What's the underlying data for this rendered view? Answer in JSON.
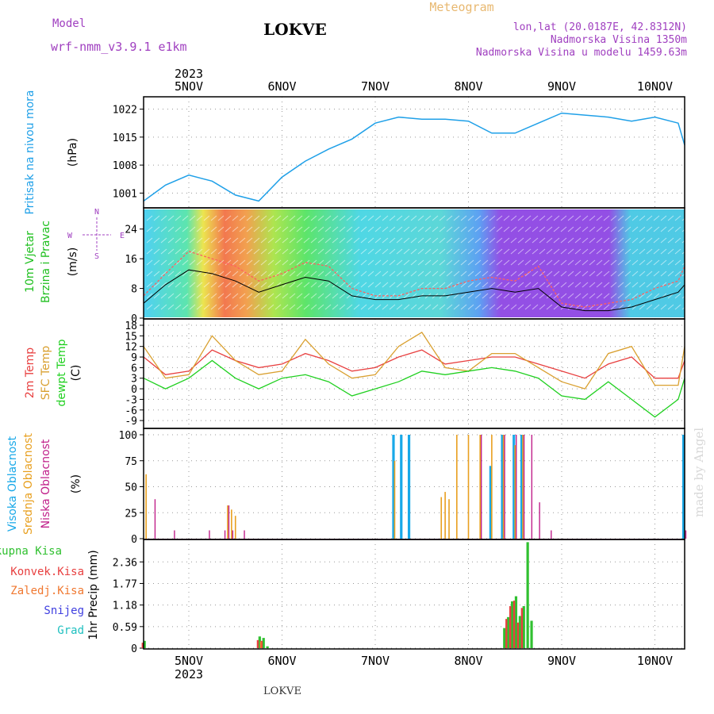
{
  "header": {
    "model_label": "Model",
    "model_name": "wrf-nmm_v3.9.1  e1km",
    "station": "LOKVE",
    "meteogram": "Meteogram",
    "lonlat": "lon,lat (20.0187E, 42.8312N)",
    "elevation": "Nadmorska Visina 1350m",
    "model_elevation": "Nadmorska Visina u modelu 1459.63m",
    "footer_station": "LOKVE",
    "watermark": "made by Angel"
  },
  "colors": {
    "pressure": "#1fa0e8",
    "temp2m": "#e84040",
    "sfc": "#d9a030",
    "dewpt": "#20d020",
    "cloud_high": "#18a8e8",
    "cloud_mid": "#e8a020",
    "cloud_low": "#c0208a",
    "precip_total": "#30c030",
    "precip_conv": "#e84040",
    "precip_frozen": "#f07830",
    "snow": "#4040e0",
    "hail": "#20c0c0",
    "wind_label": "#20c020",
    "wind_speed_label": "#20c020"
  },
  "chart_data": [
    {
      "type": "line",
      "panel": "pressure",
      "title": "",
      "ylabel": [
        "Pritisak na nivou mora",
        "(hPa)"
      ],
      "ylim": [
        997.5,
        1023.5
      ],
      "yticks": [
        1001,
        1008,
        1015,
        1022
      ],
      "x_days_top": [
        "5NOV",
        "6NOV",
        "7NOV",
        "8NOV",
        "9NOV",
        "10NOV"
      ],
      "year_top": "2023",
      "x": [
        "2023-11-04 12:00",
        "2023-11-04 18:00",
        "2023-11-05 00:00",
        "2023-11-05 06:00",
        "2023-11-05 12:00",
        "2023-11-05 18:00",
        "2023-11-06 00:00",
        "2023-11-06 06:00",
        "2023-11-06 12:00",
        "2023-11-06 18:00",
        "2023-11-07 00:00",
        "2023-11-07 06:00",
        "2023-11-07 12:00",
        "2023-11-07 18:00",
        "2023-11-08 00:00",
        "2023-11-08 06:00",
        "2023-11-08 12:00",
        "2023-11-08 18:00",
        "2023-11-09 00:00",
        "2023-11-09 06:00",
        "2023-11-09 12:00",
        "2023-11-09 18:00",
        "2023-11-10 00:00",
        "2023-11-10 06:00",
        "2023-11-10 12:00"
      ],
      "series": [
        {
          "values": [
            999,
            1003,
            1005.5,
            1004,
            1000.5,
            999,
            1005,
            1009,
            1012,
            1014.5,
            1018.5,
            1020,
            1019.5,
            1019.5,
            1019,
            1016,
            1016,
            1018.5,
            1021,
            1020.5,
            1020,
            1019,
            1020,
            1018.5,
            1013
          ]
        }
      ],
      "grid": true
    },
    {
      "type": "line",
      "panel": "wind",
      "title": "",
      "ylabel": [
        "10m Vjetar",
        "Brzina i Pravac",
        "(m/s)"
      ],
      "compass": [
        "N",
        "E",
        "W",
        "S"
      ],
      "ylim": [
        0,
        28
      ],
      "yticks": [
        0,
        8,
        16,
        24
      ],
      "x": [
        "2023-11-04 12:00",
        "2023-11-04 18:00",
        "2023-11-05 00:00",
        "2023-11-05 06:00",
        "2023-11-05 12:00",
        "2023-11-05 18:00",
        "2023-11-06 00:00",
        "2023-11-06 06:00",
        "2023-11-06 12:00",
        "2023-11-06 18:00",
        "2023-11-07 00:00",
        "2023-11-07 06:00",
        "2023-11-07 12:00",
        "2023-11-07 18:00",
        "2023-11-08 00:00",
        "2023-11-08 06:00",
        "2023-11-08 12:00",
        "2023-11-08 18:00",
        "2023-11-09 00:00",
        "2023-11-09 06:00",
        "2023-11-09 12:00",
        "2023-11-09 18:00",
        "2023-11-10 00:00",
        "2023-11-10 06:00",
        "2023-11-10 12:00"
      ],
      "series": [
        {
          "values": [
            6,
            12,
            18,
            16,
            14,
            10,
            12,
            15,
            14,
            8,
            6,
            6,
            8,
            8,
            10,
            11,
            10,
            14,
            4,
            3,
            4,
            5,
            8,
            10,
            14
          ]
        },
        {
          "values": [
            4,
            9,
            13,
            12,
            10,
            7,
            9,
            11,
            10,
            6,
            5,
            5,
            6,
            6,
            7,
            8,
            7,
            8,
            3,
            2,
            2,
            3,
            5,
            7,
            9
          ]
        }
      ],
      "grid": true
    },
    {
      "type": "line",
      "panel": "temperature",
      "title": "",
      "ylabel": [
        "2m Temp",
        "SFC Temp",
        "dewpt Temp",
        "(C)"
      ],
      "ylim": [
        -11,
        18
      ],
      "yticks": [
        -9,
        -6,
        -3,
        0,
        3,
        6,
        9,
        12,
        15,
        18
      ],
      "x": [
        "2023-11-04 12:00",
        "2023-11-04 18:00",
        "2023-11-05 00:00",
        "2023-11-05 06:00",
        "2023-11-05 12:00",
        "2023-11-05 18:00",
        "2023-11-06 00:00",
        "2023-11-06 06:00",
        "2023-11-06 12:00",
        "2023-11-06 18:00",
        "2023-11-07 00:00",
        "2023-11-07 06:00",
        "2023-11-07 12:00",
        "2023-11-07 18:00",
        "2023-11-08 00:00",
        "2023-11-08 06:00",
        "2023-11-08 12:00",
        "2023-11-08 18:00",
        "2023-11-09 00:00",
        "2023-11-09 06:00",
        "2023-11-09 12:00",
        "2023-11-09 18:00",
        "2023-11-10 00:00",
        "2023-11-10 06:00",
        "2023-11-10 12:00"
      ],
      "series": [
        {
          "values": [
            9,
            4,
            5,
            11,
            8,
            6,
            7,
            10,
            8,
            5,
            6,
            9,
            11,
            7,
            8,
            9,
            9,
            7,
            5,
            3,
            7,
            9,
            3,
            3,
            8
          ]
        },
        {
          "values": [
            12,
            3,
            4,
            15,
            8,
            4,
            5,
            14,
            7,
            3,
            4,
            12,
            16,
            6,
            5,
            10,
            10,
            6,
            2,
            0,
            10,
            12,
            1,
            1,
            12
          ]
        },
        {
          "values": [
            3,
            0,
            3,
            8,
            3,
            0,
            3,
            4,
            2,
            -2,
            0,
            2,
            5,
            4,
            5,
            6,
            5,
            3,
            -2,
            -3,
            2,
            -3,
            -8,
            -3,
            3
          ]
        }
      ],
      "grid": true
    },
    {
      "type": "bar",
      "panel": "clouds",
      "title": "",
      "ylabel": [
        "Visoka Oblacnost",
        "Srednja Oblacnost",
        "Niska Oblacnost",
        "(%)"
      ],
      "ylim": [
        0,
        100
      ],
      "yticks": [
        0,
        25,
        50,
        75,
        100
      ],
      "x": [
        "2023-11-04 13:00",
        "2023-11-04 15:00",
        "2023-11-04 20:00",
        "2023-11-05 05:00",
        "2023-11-05 09:00",
        "2023-11-05 10:00",
        "2023-11-05 11:00",
        "2023-11-05 12:00",
        "2023-11-05 14:00",
        "2023-11-07 05:00",
        "2023-11-07 07:00",
        "2023-11-07 09:00",
        "2023-11-07 17:00",
        "2023-11-07 18:00",
        "2023-11-07 19:00",
        "2023-11-07 21:00",
        "2023-11-08 00:00",
        "2023-11-08 03:00",
        "2023-11-08 06:00",
        "2023-11-08 09:00",
        "2023-11-08 12:00",
        "2023-11-08 14:00",
        "2023-11-08 16:00",
        "2023-11-08 18:00",
        "2023-11-08 21:00",
        "2023-11-10 12:00"
      ],
      "series": [
        {
          "name": "Visoka Oblacnost",
          "values": [
            0,
            0,
            0,
            0,
            0,
            0,
            0,
            0,
            0,
            100,
            100,
            100,
            0,
            0,
            0,
            0,
            0,
            0,
            70,
            100,
            100,
            100,
            0,
            0,
            0,
            100
          ]
        },
        {
          "name": "Srednja Oblacnost",
          "values": [
            62,
            0,
            0,
            0,
            0,
            32,
            28,
            22,
            0,
            75,
            0,
            0,
            40,
            45,
            38,
            100,
            100,
            100,
            100,
            100,
            90,
            100,
            0,
            0,
            0,
            0
          ]
        },
        {
          "name": "Niska Oblacnost",
          "values": [
            0,
            38,
            8,
            8,
            8,
            32,
            8,
            0,
            8,
            0,
            0,
            0,
            0,
            0,
            0,
            0,
            0,
            100,
            0,
            100,
            100,
            100,
            100,
            35,
            8,
            8
          ]
        }
      ],
      "grid": true
    },
    {
      "type": "bar",
      "panel": "precip",
      "title": "",
      "ylabel": [
        "1hr Precip (mm)"
      ],
      "legend": [
        "Ukupna Kisa",
        "Konvek.Kisa",
        "Zaledj.Kisa",
        "Snijeg",
        "Grad"
      ],
      "ylim": [
        0,
        2.8
      ],
      "yticks": [
        0,
        0.59,
        1.18,
        1.77,
        2.36
      ],
      "x_days_bottom": [
        "5NOV",
        "6NOV",
        "7NOV",
        "8NOV",
        "9NOV",
        "10NOV"
      ],
      "year_bottom": "2023",
      "x": [
        "2023-11-04 12:00",
        "2023-11-05 18:00",
        "2023-11-05 19:00",
        "2023-11-05 20:00",
        "2023-11-08 09:00",
        "2023-11-08 10:00",
        "2023-11-08 11:00",
        "2023-11-08 12:00",
        "2023-11-08 13:00",
        "2023-11-08 14:00",
        "2023-11-08 15:00",
        "2023-11-08 16:00"
      ],
      "series": [
        {
          "name": "Ukupna Kisa",
          "values": [
            0.2,
            0.32,
            0.28,
            0.05,
            0.55,
            0.85,
            1.28,
            1.42,
            0.88,
            1.15,
            2.9,
            0.75
          ]
        },
        {
          "name": "Konvek.Kisa",
          "values": [
            0.15,
            0.22,
            0.2,
            0,
            0,
            0.8,
            1.15,
            1.3,
            0.7,
            1.1,
            0,
            0
          ]
        },
        {
          "name": "Zaledj.Kisa",
          "values": [
            0,
            0,
            0.18,
            0,
            0,
            0,
            0,
            0,
            0,
            0,
            0,
            0
          ]
        }
      ],
      "grid": true
    }
  ]
}
